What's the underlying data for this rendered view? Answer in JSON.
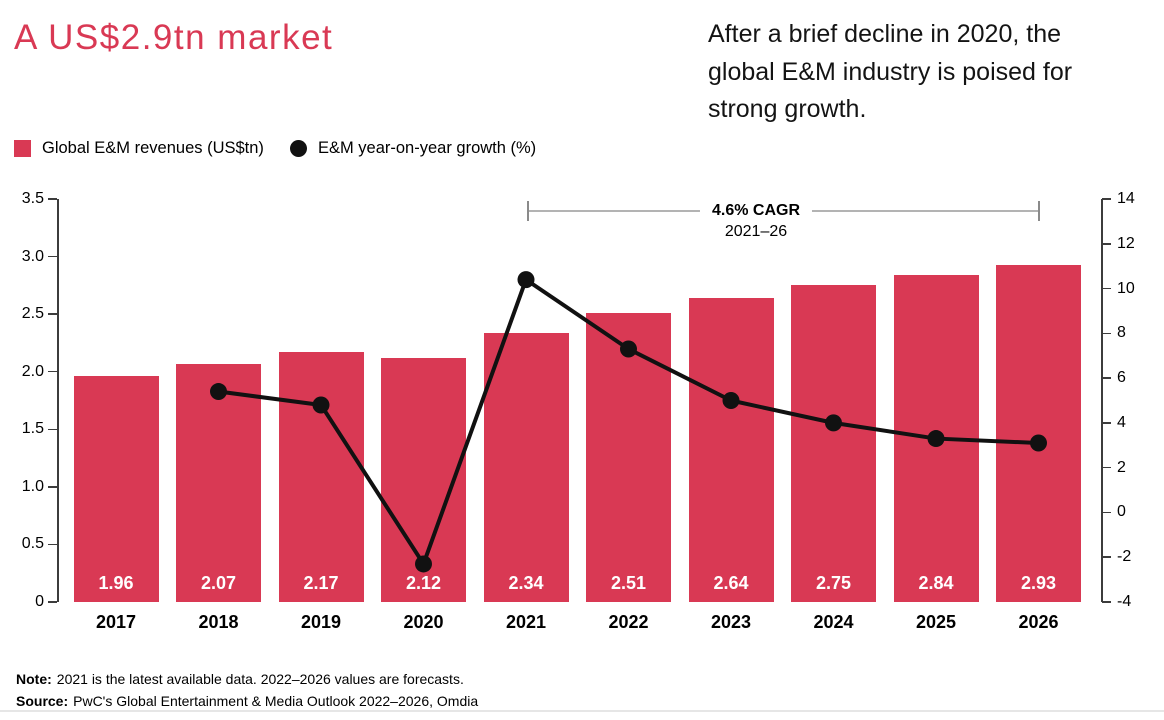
{
  "header": {
    "title": "A US$2.9tn market",
    "intro": "After a brief decline in 2020, the global E&M industry is poised for strong growth."
  },
  "chart_data": {
    "type": "combo-bar-line",
    "categories": [
      "2017",
      "2018",
      "2019",
      "2020",
      "2021",
      "2022",
      "2023",
      "2024",
      "2025",
      "2026"
    ],
    "series": [
      {
        "name": "Global E&M revenues (US$tn)",
        "type": "bar",
        "axis": "left",
        "values": [
          1.96,
          2.07,
          2.17,
          2.12,
          2.34,
          2.51,
          2.64,
          2.75,
          2.84,
          2.93
        ]
      },
      {
        "name": "E&M year-on-year growth (%)",
        "type": "line",
        "axis": "right",
        "values": [
          null,
          5.4,
          4.8,
          -2.3,
          10.4,
          7.3,
          5.0,
          4.0,
          3.3,
          3.1
        ]
      }
    ],
    "left_axis": {
      "min": 0,
      "max": 3.5,
      "step": 0.5
    },
    "right_axis": {
      "min": -4,
      "max": 14,
      "step": 2
    },
    "grid": false,
    "legend_position": "top-left",
    "annotation": {
      "text": "4.6% CAGR",
      "period": "2021–26",
      "span_categories": [
        "2021",
        "2026"
      ]
    }
  },
  "footnotes": {
    "note_label": "Note:",
    "note_text": "2021 is the latest available data. 2022–2026 values are forecasts.",
    "source_label": "Source:",
    "source_text": "PwC's Global Entertainment & Media Outlook 2022–2026, Omdia"
  },
  "colors": {
    "accent": "#d93954",
    "title": "#d93954",
    "line": "#111111",
    "bar_label": "#ffffff"
  }
}
